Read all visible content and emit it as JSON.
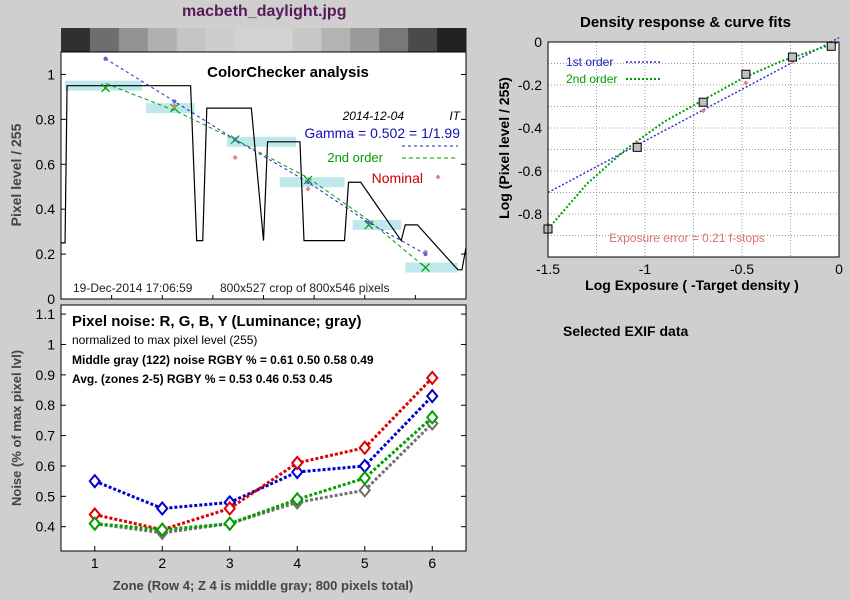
{
  "page": {
    "filename": "macbeth_daylight.jpg",
    "exif_heading": "Selected EXIF data"
  },
  "colors": {
    "red": "#e00000",
    "green": "#00a000",
    "blue": "#0000cc",
    "gray": "#707070",
    "title_purple": "#5a1a5a",
    "pink": "#e08080",
    "cyan_band": "#bfe8ec"
  },
  "chart_data": [
    {
      "id": "colorchecker",
      "type": "line",
      "title": "ColorChecker analysis",
      "ylabel": "Pixel level / 255",
      "xlim": [
        0,
        1
      ],
      "ylim": [
        0,
        1.1
      ],
      "yticks": [
        0,
        0.2,
        0.4,
        0.6,
        0.8,
        1
      ],
      "date": "2014-12-04",
      "initials": "IT",
      "gamma_text": "Gamma = 0.502 = 1/1.99",
      "second_order_label": "2nd order",
      "nominal_label": "Nominal",
      "timestamp": "19-Dec-2014 17:06:59",
      "crop_text": "800x527 crop of 800x546 pixels",
      "strip_grays": [
        "#303030",
        "#6e6e6e",
        "#939393",
        "#b0b0b0",
        "#c4c4c4",
        "#cdcdcd",
        "#d2d2d2",
        "#d2d2d2",
        "#c7c7c7",
        "#b3b3b3",
        "#9a9a9a",
        "#787878",
        "#4a4a4a",
        "#222222"
      ],
      "profile": {
        "x": [
          0,
          0.01,
          0.015,
          0.065,
          0.07,
          0.08,
          0.09,
          0.15,
          0.16,
          0.18,
          0.19,
          0.32,
          0.335,
          0.35,
          0.36,
          0.46,
          0.47,
          0.5,
          0.51,
          0.58,
          0.59,
          0.6,
          0.7,
          0.71,
          0.73,
          0.74,
          0.84,
          0.85,
          0.87,
          0.88,
          0.98,
          0.99,
          1.0
        ],
        "y": [
          0.25,
          0.25,
          0.95,
          0.95,
          0.95,
          0.95,
          0.95,
          0.95,
          0.95,
          0.95,
          0.95,
          0.95,
          0.26,
          0.26,
          0.85,
          0.85,
          0.85,
          0.26,
          0.7,
          0.7,
          0.7,
          0.26,
          0.26,
          0.52,
          0.52,
          0.52,
          0.26,
          0.33,
          0.33,
          0.33,
          0.13,
          0.13,
          0.23
        ]
      },
      "zones": [
        {
          "x": [
            0.01,
            0.2
          ],
          "y": 0.95
        },
        {
          "x": [
            0.21,
            0.33
          ],
          "y": 0.85
        },
        {
          "x": [
            0.41,
            0.58
          ],
          "y": 0.7
        },
        {
          "x": [
            0.54,
            0.7
          ],
          "y": 0.52
        },
        {
          "x": [
            0.72,
            0.84
          ],
          "y": 0.33
        },
        {
          "x": [
            0.85,
            0.98
          ],
          "y": 0.14
        }
      ],
      "markers_x": [
        0.11,
        0.28,
        0.43,
        0.61,
        0.76,
        0.9
      ],
      "markers_y": [
        0.94,
        0.85,
        0.71,
        0.53,
        0.33,
        0.14
      ],
      "nominal_y": [
        1.07,
        0.86,
        0.63,
        0.49,
        0.34,
        0.21
      ],
      "first_order_y": [
        1.07,
        0.88,
        0.71,
        0.52,
        0.34,
        0.2
      ],
      "second_order_y": [
        0.96,
        0.84,
        0.71,
        0.54,
        0.35,
        0.14
      ]
    },
    {
      "id": "density",
      "type": "scatter",
      "title": "Density response & curve fits",
      "xlabel": "Log Exposure ( -Target density )",
      "ylabel": "Log (Pixel level / 255)",
      "xlim": [
        -1.5,
        0
      ],
      "ylim": [
        -1.0,
        0
      ],
      "xticks": [
        -1.5,
        -1,
        -0.5,
        0
      ],
      "yticks": [
        0,
        -0.2,
        -0.4,
        -0.6,
        -0.8
      ],
      "legend": [
        "1st order",
        "2nd order"
      ],
      "annotation": "Exposure error = 0.21 f-stops",
      "points": {
        "x": [
          -1.5,
          -1.04,
          -0.7,
          -0.48,
          -0.24,
          -0.04
        ],
        "y": [
          -0.87,
          -0.49,
          -0.28,
          -0.15,
          -0.07,
          -0.02
        ]
      },
      "nominal": {
        "x": [
          -1.5,
          -1.04,
          -0.7,
          -0.48,
          -0.24,
          -0.04
        ],
        "y": [
          -0.85,
          -0.47,
          -0.32,
          -0.19,
          -0.09,
          -0.02
        ]
      },
      "first_order": {
        "x": [
          -1.5,
          0
        ],
        "y": [
          -0.7,
          0.02
        ]
      },
      "second_order": {
        "x": [
          -1.5,
          -1.3,
          -1.1,
          -0.9,
          -0.7,
          -0.5,
          -0.3,
          -0.1,
          0
        ],
        "y": [
          -0.87,
          -0.66,
          -0.5,
          -0.37,
          -0.27,
          -0.17,
          -0.09,
          -0.03,
          0
        ]
      }
    },
    {
      "id": "noise",
      "type": "line",
      "title": "Pixel noise: R, G, B, Y (Luminance; gray)",
      "subtitle": "normalized to max pixel level (255)",
      "line1": "Middle gray (122) noise RGBY % = 0.61  0.50  0.58  0.49",
      "line2": "Avg. (zones 2-5) RGBY % = 0.53  0.46  0.53  0.45",
      "xlabel": "Zone  (Row 4;  Z 4 is middle gray;  800 pixels total)",
      "ylabel": "Noise (% of max pixel lvl)",
      "xlim": [
        0.5,
        6.5
      ],
      "ylim": [
        0.32,
        1.13
      ],
      "yticks": [
        0.4,
        0.5,
        0.6,
        0.7,
        0.8,
        0.9,
        1,
        1.1
      ],
      "categories": [
        1,
        2,
        3,
        4,
        5,
        6
      ],
      "series": [
        {
          "name": "R",
          "color": "#e00000",
          "values": [
            0.44,
            0.39,
            0.46,
            0.61,
            0.66,
            0.89
          ]
        },
        {
          "name": "G",
          "color": "#00a000",
          "values": [
            0.41,
            0.39,
            0.41,
            0.49,
            0.56,
            0.76
          ]
        },
        {
          "name": "B",
          "color": "#0000cc",
          "values": [
            0.55,
            0.46,
            0.48,
            0.58,
            0.6,
            0.83
          ]
        },
        {
          "name": "Y",
          "color": "#707070",
          "values": [
            0.41,
            0.38,
            0.41,
            0.48,
            0.52,
            0.74
          ]
        }
      ]
    }
  ]
}
